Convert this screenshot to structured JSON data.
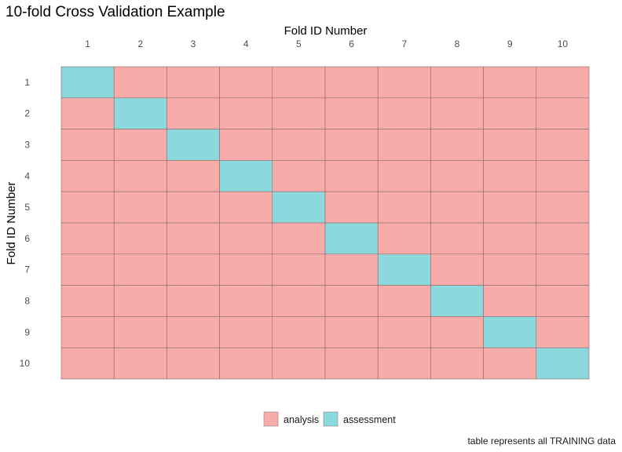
{
  "chart_data": {
    "type": "heatmap",
    "title": "10-fold Cross Validation Example",
    "xlabel": "Fold ID Number",
    "ylabel": "Fold ID Number",
    "x_categories": [
      "1",
      "2",
      "3",
      "4",
      "5",
      "6",
      "7",
      "8",
      "9",
      "10"
    ],
    "y_categories": [
      "1",
      "2",
      "3",
      "4",
      "5",
      "6",
      "7",
      "8",
      "9",
      "10"
    ],
    "x_axis_position": "top",
    "fill_rule": "assessment when row fold equals column fold, otherwise analysis",
    "legend": {
      "position": "bottom",
      "entries": [
        {
          "label": "analysis",
          "color": "#F8ACAA"
        },
        {
          "label": "assessment",
          "color": "#8BD9DC"
        }
      ]
    },
    "caption": "table represents all TRAINING data",
    "grid": false
  }
}
